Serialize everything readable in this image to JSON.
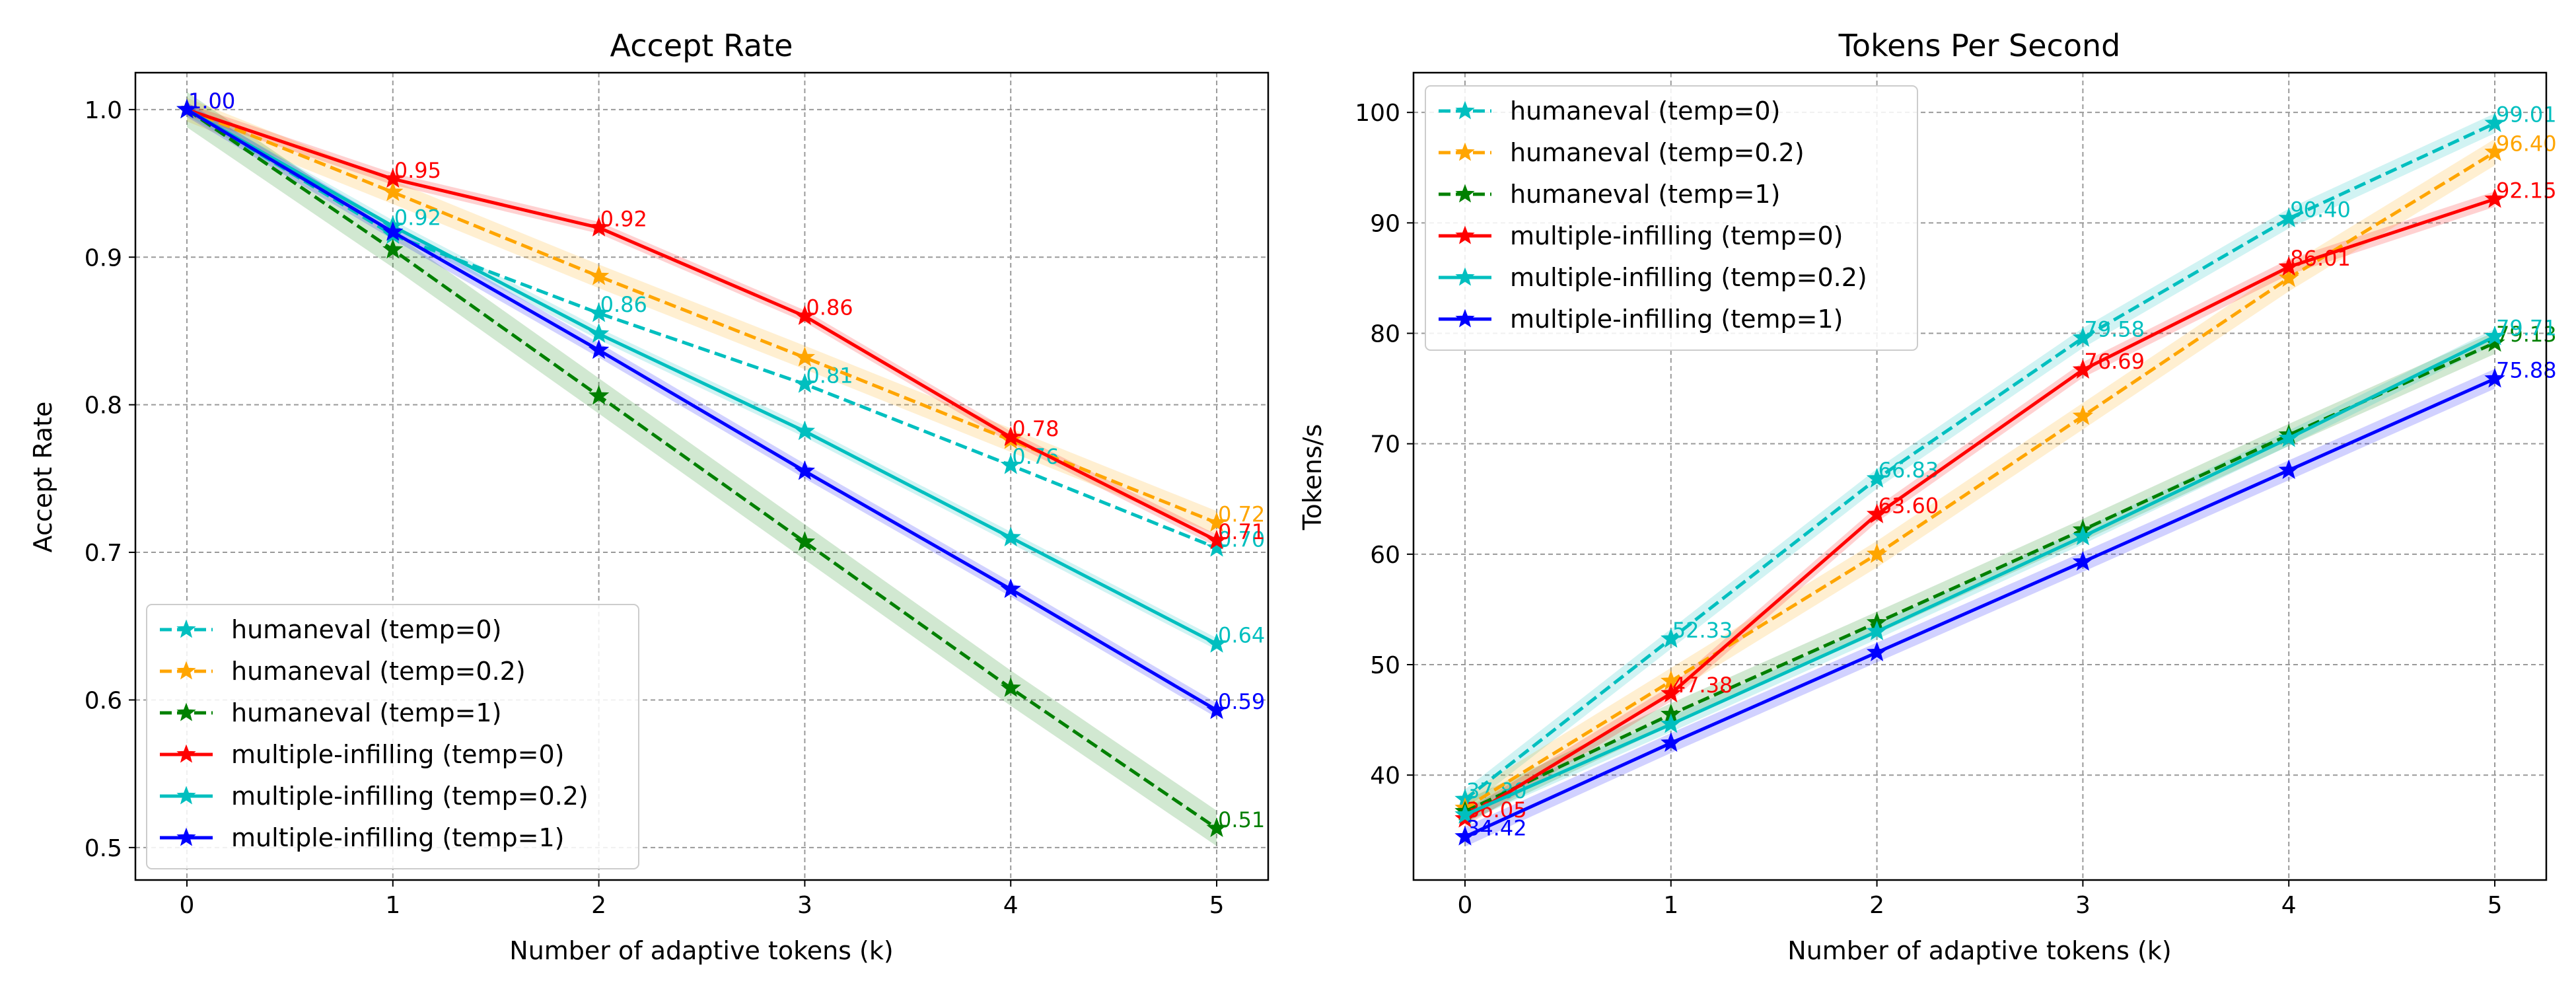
{
  "chart_data": [
    {
      "type": "line",
      "title": "Accept Rate",
      "xlabel": "Number of adaptive tokens (k)",
      "ylabel": "Accept Rate",
      "xlim": [
        -0.25,
        5.25
      ],
      "ylim": [
        0.478,
        1.025
      ],
      "xticks": [
        "0",
        "1",
        "2",
        "3",
        "4",
        "5"
      ],
      "yticks": [
        "0.5",
        "0.6",
        "0.7",
        "0.8",
        "0.9",
        "1.0"
      ],
      "grid": true,
      "legend_position": "lower-left",
      "x": [
        0,
        1,
        2,
        3,
        4,
        5
      ],
      "series": [
        {
          "name": "humaneval (temp=0)",
          "color": "#00bfbf",
          "style": "dashed",
          "marker": "star",
          "values": [
            1.0,
            0.915,
            0.862,
            0.814,
            0.759,
            0.703
          ],
          "labels": [
            null,
            null,
            "0.86",
            "0.81",
            "0.76",
            "0.70"
          ],
          "band": 0
        },
        {
          "name": "humaneval (temp=0.2)",
          "color": "#ffa500",
          "style": "dashed",
          "marker": "star",
          "values": [
            1.0,
            0.944,
            0.887,
            0.832,
            0.776,
            0.72
          ],
          "labels": [
            null,
            null,
            null,
            null,
            null,
            "0.72"
          ],
          "band": 0.008
        },
        {
          "name": "humaneval (temp=1)",
          "color": "#008000",
          "style": "dashed",
          "marker": "star",
          "values": [
            1.0,
            0.905,
            0.806,
            0.707,
            0.608,
            0.513
          ],
          "labels": [
            null,
            null,
            null,
            null,
            null,
            "0.51"
          ],
          "band": 0.012
        },
        {
          "name": "multiple-infilling (temp=0)",
          "color": "#ff0000",
          "style": "solid",
          "marker": "star",
          "values": [
            1.0,
            0.953,
            0.92,
            0.86,
            0.778,
            0.708
          ],
          "labels": [
            "1.00",
            "0.95",
            "0.92",
            "0.86",
            "0.78",
            "0.71"
          ],
          "band": 0.004
        },
        {
          "name": "multiple-infilling (temp=0.2)",
          "color": "#00bfbf",
          "style": "solid",
          "marker": "star",
          "values": [
            1.0,
            0.921,
            0.848,
            0.782,
            0.71,
            0.638
          ],
          "labels": [
            null,
            "0.92",
            null,
            null,
            null,
            "0.64"
          ],
          "band": 0.004
        },
        {
          "name": "multiple-infilling (temp=1)",
          "color": "#0000ff",
          "style": "solid",
          "marker": "star",
          "values": [
            1.0,
            0.917,
            0.837,
            0.755,
            0.675,
            0.593
          ],
          "labels": [
            "1.00",
            null,
            null,
            null,
            null,
            "0.59"
          ],
          "band": 0.005
        }
      ]
    },
    {
      "type": "line",
      "title": "Tokens Per Second",
      "xlabel": "Number of adaptive tokens (k)",
      "ylabel": "Tokens/s",
      "xlim": [
        -0.25,
        5.25
      ],
      "ylim": [
        30.5,
        103.6
      ],
      "xticks": [
        "0",
        "1",
        "2",
        "3",
        "4",
        "5"
      ],
      "yticks": [
        "40",
        "50",
        "60",
        "70",
        "80",
        "90",
        "100"
      ],
      "grid": true,
      "legend_position": "upper-left",
      "x": [
        0,
        1,
        2,
        3,
        4,
        5
      ],
      "series": [
        {
          "name": "humaneval (temp=0)",
          "color": "#00bfbf",
          "style": "dashed",
          "marker": "star",
          "values": [
            37.8,
            52.33,
            66.83,
            79.58,
            90.4,
            99.01
          ],
          "labels": [
            "37.80",
            "52.33",
            "66.83",
            "79.58",
            "90.40",
            "99.01"
          ],
          "band": 0.9
        },
        {
          "name": "humaneval (temp=0.2)",
          "color": "#ffa500",
          "style": "dashed",
          "marker": "star",
          "values": [
            37.0,
            48.5,
            60.0,
            72.5,
            85.0,
            96.4
          ],
          "labels": [
            null,
            null,
            null,
            null,
            null,
            "96.40"
          ],
          "band": 1.2
        },
        {
          "name": "humaneval (temp=1)",
          "color": "#008000",
          "style": "dashed",
          "marker": "star",
          "values": [
            36.7,
            45.5,
            53.8,
            62.2,
            70.8,
            79.13
          ],
          "labels": [
            null,
            null,
            null,
            null,
            null,
            "79.13"
          ],
          "band": 1.0
        },
        {
          "name": "multiple-infilling (temp=0)",
          "color": "#ff0000",
          "style": "solid",
          "marker": "star",
          "values": [
            36.05,
            47.38,
            63.6,
            76.69,
            86.01,
            92.15
          ],
          "labels": [
            "36.05",
            "47.38",
            "63.60",
            "76.69",
            "86.01",
            "92.15"
          ],
          "band": 0.7
        },
        {
          "name": "multiple-infilling (temp=0.2)",
          "color": "#00bfbf",
          "style": "solid",
          "marker": "star",
          "values": [
            36.4,
            44.6,
            53.0,
            61.6,
            70.5,
            79.71
          ],
          "labels": [
            null,
            null,
            null,
            null,
            null,
            "79.71"
          ],
          "band": 0.7
        },
        {
          "name": "multiple-infilling (temp=1)",
          "color": "#0000ff",
          "style": "solid",
          "marker": "star",
          "values": [
            34.42,
            42.9,
            51.1,
            59.3,
            67.6,
            75.88
          ],
          "labels": [
            "34.42",
            null,
            null,
            null,
            null,
            "75.88"
          ],
          "band": 0.9
        }
      ]
    }
  ]
}
